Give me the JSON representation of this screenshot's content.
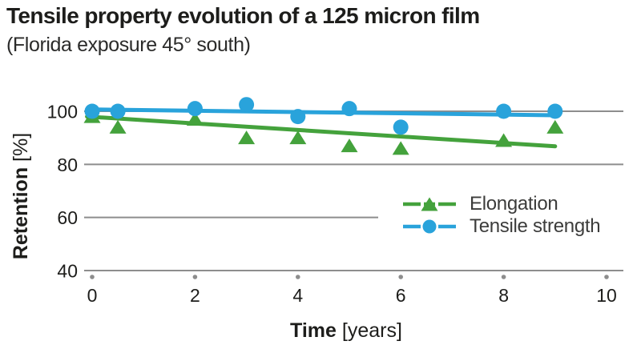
{
  "header": {
    "title": "Tensile property evolution of a 125 micron film",
    "subtitle": "(Florida exposure 45° south)"
  },
  "chart_data": {
    "type": "scatter",
    "title": "Tensile property evolution of a 125 micron film",
    "subtitle": "(Florida exposure 45° south)",
    "xlabel": "Time [years]",
    "xlabel_bold": "Time",
    "xlabel_unit": "[years]",
    "ylabel": "Retention [%]",
    "ylabel_bold": "Retention",
    "ylabel_unit": "[%]",
    "xlim": [
      0,
      10
    ],
    "ylim": [
      40,
      105
    ],
    "x_ticks": [
      0,
      2,
      4,
      6,
      8,
      10
    ],
    "y_ticks": [
      100,
      80,
      60,
      40
    ],
    "grid": "horizontal-only",
    "shortened_gridline": 60,
    "legend_position": "inside-lower-right",
    "series": [
      {
        "name": "Elongation",
        "marker": "triangle",
        "color": "#44a23c",
        "x": [
          0,
          0.5,
          2,
          3,
          4,
          5,
          6,
          8,
          9
        ],
        "y": [
          98,
          94,
          97,
          90,
          90,
          87,
          86,
          89,
          94
        ],
        "trend": {
          "x": [
            -0.1,
            9
          ],
          "y": [
            98,
            86.8
          ]
        }
      },
      {
        "name": "Tensile strength",
        "marker": "circle",
        "color": "#29a3db",
        "x": [
          0,
          0.5,
          2,
          3,
          4,
          5,
          6,
          8,
          9
        ],
        "y": [
          100,
          100,
          101,
          102.5,
          98,
          101,
          94,
          100,
          100
        ],
        "trend": {
          "x": [
            -0.1,
            9
          ],
          "y": [
            100.7,
            98.5
          ]
        }
      }
    ],
    "colors": {
      "gridline": "#8d8d8d",
      "tick_dot": "#8d8d8d",
      "text": "#1d1d1b",
      "legend_text": "#3c3c3b"
    }
  },
  "legend": {
    "items": [
      {
        "label": "Elongation"
      },
      {
        "label": "Tensile strength"
      }
    ]
  }
}
